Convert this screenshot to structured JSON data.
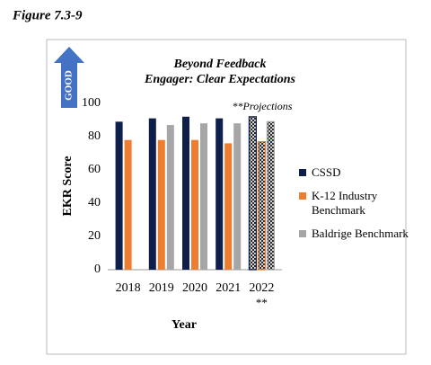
{
  "figure_label": "Figure 7.3-9",
  "chart_data": {
    "type": "bar",
    "title": [
      "Beyond Feedback",
      "Engager: Clear Expectations"
    ],
    "annotation": "**Projections",
    "direction_label": "GOOD",
    "y_label": "EKR Score",
    "x_label": "Year",
    "categories": [
      "2018",
      "2019",
      "2020",
      "2021",
      "2022"
    ],
    "category_note": "**",
    "projected": [
      false,
      false,
      false,
      false,
      true
    ],
    "series": [
      {
        "name": "CSSD",
        "color": "#0f1f4b",
        "values": [
          89,
          91,
          92,
          91,
          92
        ]
      },
      {
        "name": "K-12 Industry Benchmark",
        "color": "#ed7d31",
        "values": [
          78,
          78,
          78,
          76,
          77
        ]
      },
      {
        "name": "Baldrige Benchmark",
        "color": "#a6a6a6",
        "values": [
          null,
          87,
          88,
          88,
          89
        ]
      }
    ],
    "ylim": [
      0,
      100
    ],
    "yticks": [
      0,
      20,
      40,
      60,
      80,
      100
    ],
    "grid": false
  }
}
